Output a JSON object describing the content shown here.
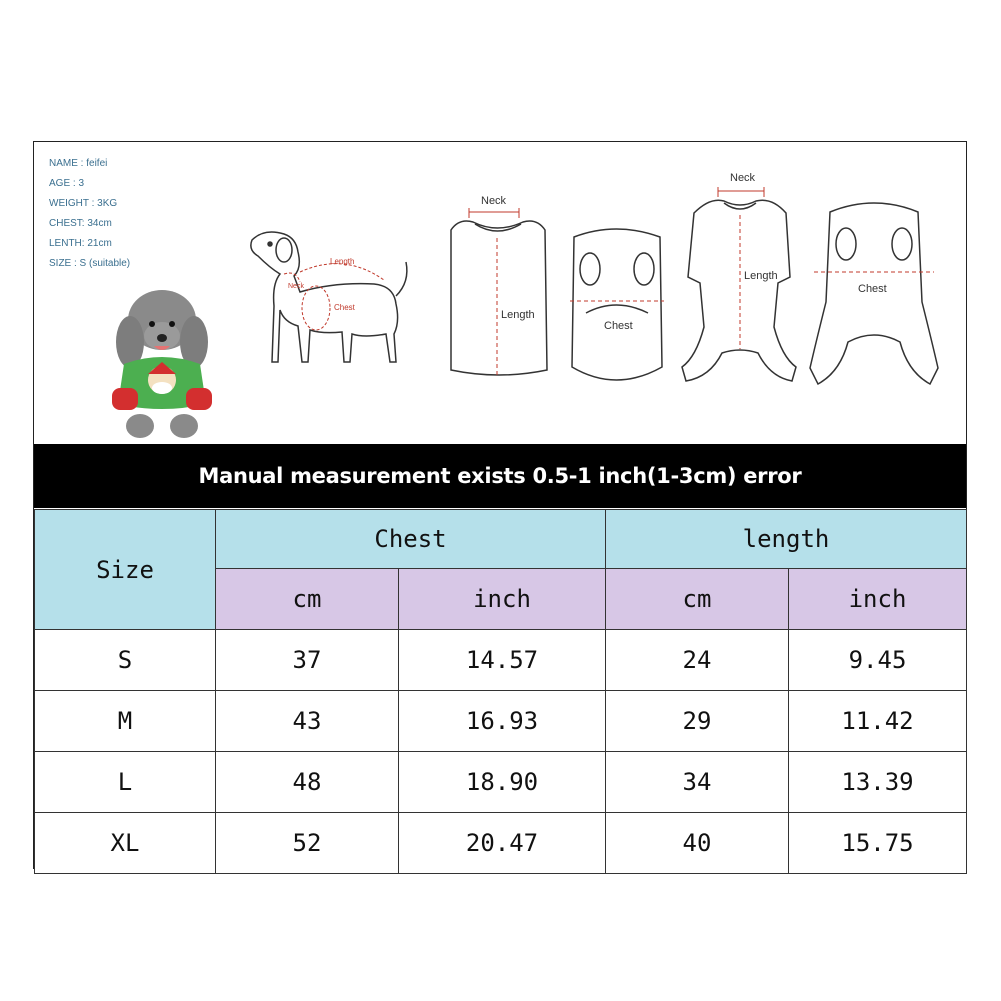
{
  "pet_info": {
    "name": "NAME : feifei",
    "age": "AGE : 3",
    "weight": "WEIGHT : 3KG",
    "chest": "CHEST: 34cm",
    "length": "LENTH: 21cm",
    "size": "SIZE : S  (suitable)"
  },
  "diagram_labels": {
    "dog_length": "Length",
    "dog_neck": "Neck",
    "dog_chest": "Chest",
    "shirt_neck": "Neck",
    "shirt_length": "Length",
    "shirt_chest": "Chest",
    "suit_neck": "Neck",
    "suit_length": "Length",
    "suit_chest": "Chest"
  },
  "banner": "Manual measurement exists 0.5-1 inch(1-3cm) error",
  "table": {
    "size_header": "Size",
    "chest_header": "Chest",
    "length_header": "length",
    "unit_cm": "cm",
    "unit_inch": "inch",
    "rows": [
      {
        "size": "S",
        "chest_cm": "37",
        "chest_inch": "14.57",
        "length_cm": "24",
        "length_inch": "9.45"
      },
      {
        "size": "M",
        "chest_cm": "43",
        "chest_inch": "16.93",
        "length_cm": "29",
        "length_inch": "11.42"
      },
      {
        "size": "L",
        "chest_cm": "48",
        "chest_inch": "18.90",
        "length_cm": "34",
        "length_inch": "13.39"
      },
      {
        "size": "XL",
        "chest_cm": "52",
        "chest_inch": "20.47",
        "length_cm": "40",
        "length_inch": "15.75"
      }
    ]
  },
  "colors": {
    "header_blue": "#b5e0ea",
    "header_purple": "#d7c7e6",
    "banner_bg": "#000000",
    "measure_red": "#c0392b"
  }
}
